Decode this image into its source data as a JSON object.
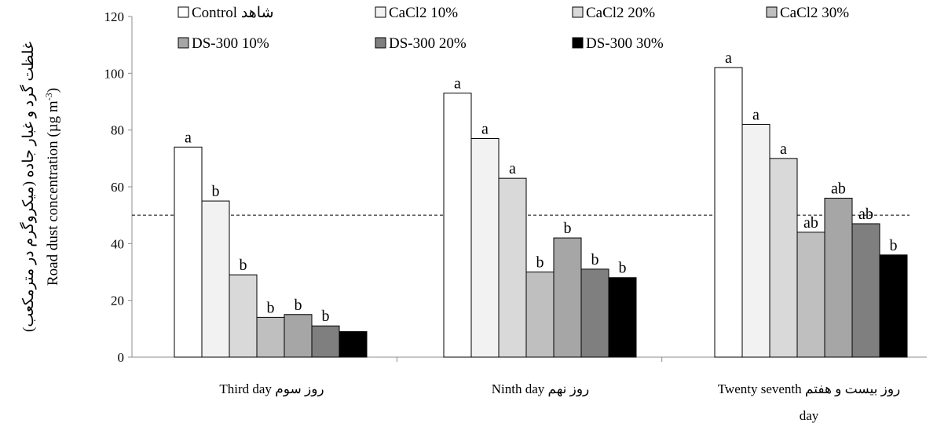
{
  "chart_data": {
    "type": "bar",
    "ylabel_fa": "غلظت گرد و غبار جاده (میکروگرم در مترمکعب)",
    "ylabel_en": "Road dust concentration (µg m",
    "ylabel_sup": "-3",
    "ylabel_close": ")",
    "ylim": [
      0,
      120
    ],
    "yticks": [
      0,
      20,
      40,
      60,
      80,
      100,
      120
    ],
    "reference_line": 50,
    "categories": [
      {
        "lines": [
          "Third day روز سوم"
        ]
      },
      {
        "lines": [
          "Ninth day روز نهم"
        ]
      },
      {
        "lines": [
          "روز بیست و هفتم  Twenty seventh",
          "day"
        ]
      }
    ],
    "series": [
      {
        "name": "Control شاهد",
        "color": "#ffffff",
        "values": [
          74,
          93,
          102
        ],
        "labels": [
          "a",
          "a",
          "a"
        ]
      },
      {
        "name": "CaCl2 10%",
        "color": "#f2f2f2",
        "values": [
          55,
          77,
          82
        ],
        "labels": [
          "b",
          "a",
          "a"
        ]
      },
      {
        "name": "CaCl2 20%",
        "color": "#d9d9d9",
        "values": [
          29,
          63,
          70
        ],
        "labels": [
          "b",
          "a",
          "a"
        ]
      },
      {
        "name": "CaCl2 30%",
        "color": "#bfbfbf",
        "values": [
          14,
          30,
          44
        ],
        "labels": [
          "b",
          "b",
          "ab"
        ]
      },
      {
        "name": "DS-300 10%",
        "color": "#a6a6a6",
        "values": [
          15,
          42,
          56
        ],
        "labels": [
          "b",
          "b",
          "ab"
        ]
      },
      {
        "name": "DS-300 20%",
        "color": "#7f7f7f",
        "values": [
          11,
          31,
          47
        ],
        "labels": [
          "b",
          "b",
          "ab"
        ]
      },
      {
        "name": "DS-300 30%",
        "color": "#000000",
        "values": [
          9,
          28,
          36
        ],
        "labels": [
          "",
          "b",
          "b"
        ]
      }
    ],
    "legend_position": "top",
    "grid": false
  }
}
